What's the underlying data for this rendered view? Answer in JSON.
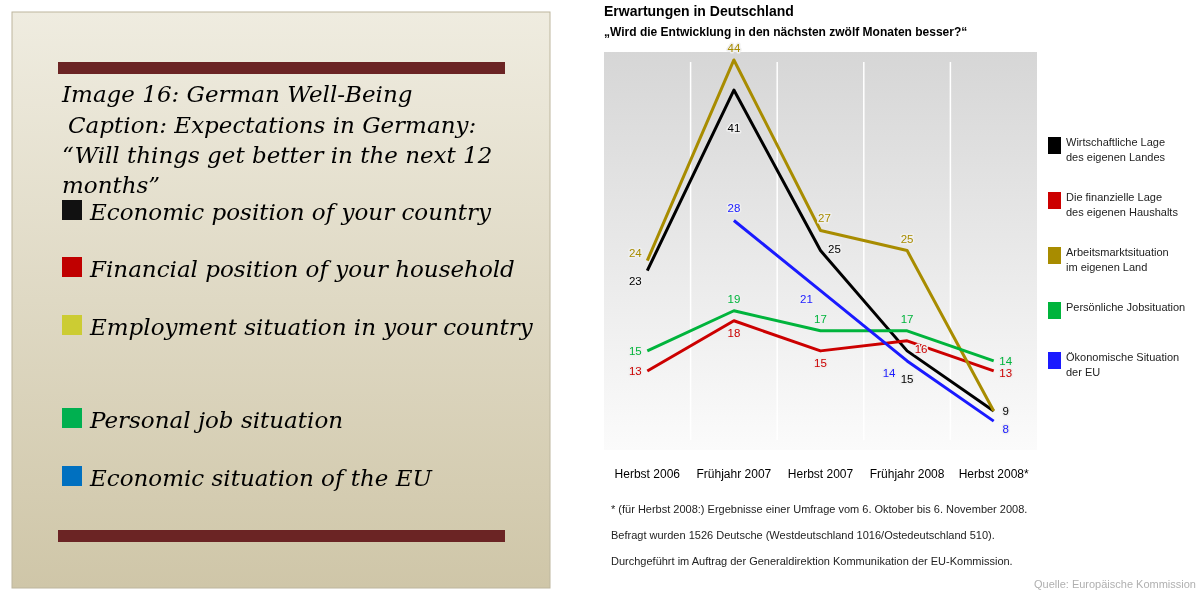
{
  "chart_data": [
    {
      "type": "other",
      "title": "Image 16: German Well-Being",
      "subtitle": "Caption: Expectations in Germany: “Will things get better in the next 12 months”",
      "annotations": [
        "Economic position of your country",
        "Financial position of your household",
        "Employment situation in your country",
        "Personal job situation",
        "Economic situation of the EU"
      ]
    },
    {
      "type": "line",
      "title": "Erwartungen in Deutschland",
      "subtitle": "„Wird die Entwicklung in den nächsten zwölf Monaten besser?“",
      "categories": [
        "Herbst 2006",
        "Frühjahr 2007",
        "Herbst 2007",
        "Frühjahr 2008",
        "Herbst 2008*"
      ],
      "series": [
        {
          "name": "Wirtschaftliche Lage des eigenen Landes",
          "color": "#000000",
          "values": [
            23,
            41,
            25,
            15,
            9
          ],
          "value_labels": [
            "23",
            "41",
            "25",
            "15",
            "9"
          ]
        },
        {
          "name": "Die finanzielle Lage des eigenen Haushalts",
          "color": "#cc0000",
          "values": [
            13,
            18,
            15,
            16,
            13
          ],
          "value_labels": [
            "13",
            "18",
            "15",
            "16",
            "13"
          ]
        },
        {
          "name": "Arbeitsmarktsituation im eigenen Land",
          "color": "#a88c00",
          "values": [
            24,
            44,
            27,
            25,
            9
          ],
          "value_labels": [
            "24",
            "44",
            "27",
            "25",
            null
          ]
        },
        {
          "name": "Persönliche Jobsituation",
          "color": "#00b43c",
          "values": [
            15,
            19,
            17,
            17,
            14
          ],
          "value_labels": [
            "15",
            "19",
            "17",
            "17",
            "14"
          ]
        },
        {
          "name": "Ökonomische Situation der EU",
          "color": "#1a1aff",
          "values": [
            null,
            28,
            21,
            14,
            8
          ],
          "value_labels": [
            null,
            "28",
            "21",
            "14",
            "8"
          ]
        }
      ],
      "grid": "x",
      "legend": "right",
      "annotations": [
        "* (für Herbst 2008:) Ergebnisse einer Umfrage vom 6. Oktober bis 6. November 2008.",
        "Befragt wurden 1526 Deutsche (Westdeutschland 1016/Ostedeutschland 510).",
        "Durchgeführt im Auftrag der Generaldirektion Kommunikation der EU-Kommission.",
        "Quelle: Europäische Kommission"
      ]
    }
  ]
}
